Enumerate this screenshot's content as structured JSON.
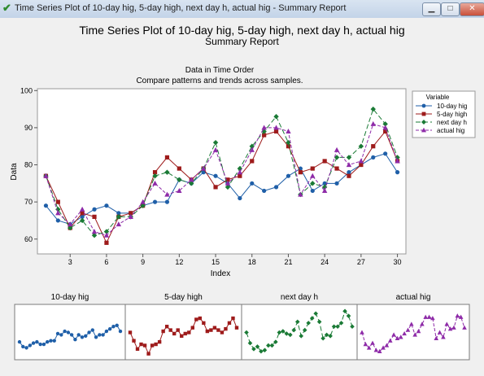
{
  "window": {
    "title": "Time Series Plot of 10-day hig, 5-day high, next day h, actual hig - Summary Report",
    "icon": "check-icon",
    "buttons": [
      "minimize",
      "maximize",
      "close"
    ]
  },
  "report": {
    "title": "Time Series Plot of 10-day hig, 5-day high, next day h, actual hig",
    "subtitle": "Summary Report",
    "main_chart_title": "Data in Time Order",
    "main_chart_subtitle": "Compare patterns and trends across samples.",
    "legend_title": "Variable"
  },
  "chart_data": [
    {
      "type": "line",
      "title": "Data in Time Order",
      "subtitle": "Compare patterns and trends across samples.",
      "xlabel": "Index",
      "ylabel": "Data",
      "xlim": [
        0.3,
        30.7
      ],
      "ylim": [
        56,
        100.5
      ],
      "x_ticks": [
        3,
        6,
        9,
        12,
        15,
        18,
        21,
        24,
        27,
        30
      ],
      "y_ticks": [
        60,
        70,
        80,
        90,
        100
      ],
      "legend_position": "right",
      "grid": false,
      "x": [
        1,
        2,
        3,
        4,
        5,
        6,
        7,
        8,
        9,
        10,
        11,
        12,
        13,
        14,
        15,
        16,
        17,
        18,
        19,
        20,
        21,
        22,
        23,
        24,
        25,
        26,
        27,
        28,
        29,
        30
      ],
      "series": [
        {
          "name": "10-day hig",
          "color": "#1f5fa8",
          "marker": "circle",
          "dash": "solid",
          "values": [
            69,
            65,
            64,
            66,
            68,
            69,
            67,
            67,
            69,
            70,
            70,
            76,
            75,
            78,
            77,
            75,
            71,
            75,
            73,
            74,
            77,
            79,
            73,
            75,
            75,
            78,
            80,
            82,
            83,
            78
          ]
        },
        {
          "name": "5-day high",
          "color": "#9e1b1b",
          "marker": "square",
          "dash": "solid",
          "values": [
            77,
            70,
            63,
            67,
            66,
            59,
            66,
            67,
            69,
            78,
            82,
            79,
            76,
            79,
            74,
            76,
            77,
            81,
            88,
            89,
            85,
            78,
            79,
            81,
            79,
            77,
            80,
            85,
            89,
            81
          ]
        },
        {
          "name": "next day h",
          "color": "#1a7a35",
          "marker": "diamond",
          "dash": "longdash",
          "values": [
            77,
            68,
            63,
            65,
            61,
            62,
            66,
            66,
            69,
            77,
            78,
            76,
            75,
            79,
            86,
            74,
            79,
            85,
            89,
            93,
            86,
            72,
            75,
            74,
            82,
            82,
            85,
            95,
            91,
            82
          ]
        },
        {
          "name": "actual hig",
          "color": "#8e2ba8",
          "marker": "triangle",
          "dash": "dash",
          "values": [
            77,
            67,
            64,
            68,
            62,
            61,
            64,
            66,
            70,
            75,
            72,
            73,
            76,
            79,
            84,
            75,
            78,
            84,
            90,
            90,
            89,
            72,
            77,
            73,
            84,
            80,
            81,
            91,
            90,
            81
          ]
        }
      ]
    },
    {
      "type": "line",
      "title": "10-day hig",
      "series_ref": "10-day hig"
    },
    {
      "type": "line",
      "title": "5-day high",
      "series_ref": "5-day high"
    },
    {
      "type": "line",
      "title": "next day h",
      "series_ref": "next day h"
    },
    {
      "type": "line",
      "title": "actual hig",
      "series_ref": "actual hig"
    }
  ]
}
